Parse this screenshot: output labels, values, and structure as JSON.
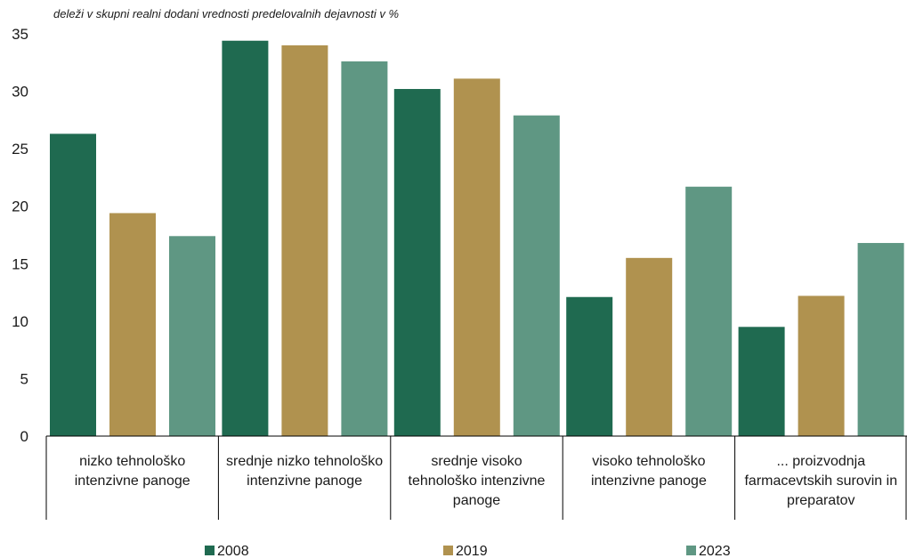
{
  "chart_data": {
    "type": "bar",
    "ylabel": "deleži v skupni realni dodani vrednosti predelovalnih dejavnosti v %",
    "ylim": [
      0,
      35
    ],
    "yticks": [
      0,
      5,
      10,
      15,
      20,
      25,
      30,
      35
    ],
    "grid": false,
    "legend_position": "bottom",
    "categories": [
      [
        "nizko tehnološko",
        "intenzivne panoge"
      ],
      [
        "srednje nizko tehnološko",
        "intenzivne panoge"
      ],
      [
        "srednje visoko",
        "tehnološko intenzivne",
        "panoge"
      ],
      [
        "visoko tehnološko",
        "intenzivne panoge"
      ],
      [
        "... proizvodnja",
        "farmacevtskih surovin in",
        "preparatov"
      ]
    ],
    "series": [
      {
        "name": "2008",
        "color": "#1f6a50",
        "values": [
          26.3,
          34.4,
          30.2,
          12.1,
          9.5
        ]
      },
      {
        "name": "2019",
        "color": "#b0924f",
        "values": [
          19.4,
          34.0,
          31.1,
          15.5,
          12.2
        ]
      },
      {
        "name": "2023",
        "color": "#5f9783",
        "values": [
          17.4,
          32.6,
          27.9,
          21.7,
          16.8
        ]
      }
    ]
  }
}
